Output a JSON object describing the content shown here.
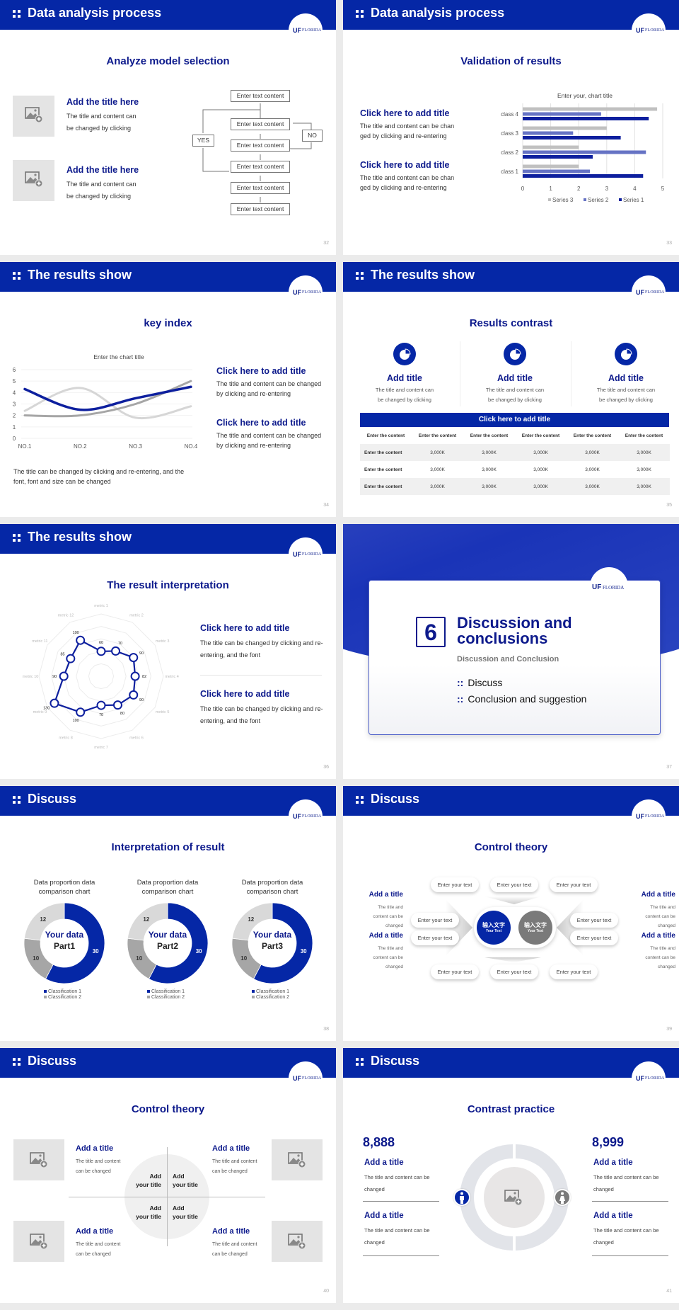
{
  "colors": {
    "brand": "#0527a6",
    "title": "#0d1a8c",
    "series_dark": "#0d1f9e",
    "series_mid": "#6673c4",
    "light_gray": "#d3d3d3",
    "mid_gray": "#a6a6a6"
  },
  "logo": {
    "mark": "UF",
    "name": "FLORIDA"
  },
  "s32": {
    "page": "32",
    "header": "Data analysis process",
    "title": "Analyze model selection",
    "items": [
      {
        "title": "Add the title here",
        "body": "The title and content can be changed by clicking"
      },
      {
        "title": "Add the title here",
        "body": "The title and content can be changed by clicking"
      }
    ],
    "flow": {
      "steps": [
        "Enter text content",
        "Enter text content",
        "Enter text content",
        "Enter text content",
        "Enter text content",
        "Enter text content"
      ],
      "yes": "YES",
      "no": "NO"
    }
  },
  "s33": {
    "page": "33",
    "header": "Data analysis process",
    "title": "Validation of results",
    "items": [
      {
        "title": "Click here to add title",
        "body": "The title and content can be changed by clicking and re-entering"
      },
      {
        "title": "Click here to add title",
        "body": "The title and content can be changed by clicking and re-entering"
      }
    ]
  },
  "s34": {
    "page": "34",
    "header": "The results show",
    "title": "key index",
    "items": [
      {
        "title": "Click here to add title",
        "body": "The title and content can be changed by clicking and re-entering"
      },
      {
        "title": "Click here to add title",
        "body": "The title and content can be changed by clicking and re-entering"
      }
    ],
    "note": "The title can be changed by clicking and re-entering, and the font, font and size can be changed"
  },
  "s35": {
    "page": "35",
    "header": "The results show",
    "title": "Results contrast",
    "cards": [
      {
        "title": "Add title",
        "body": "The title and content can be changed by clicking",
        "icon": "pie-chart-icon"
      },
      {
        "title": "Add title",
        "body": "The title and content can be changed by clicking",
        "icon": "pie-chart-icon"
      },
      {
        "title": "Add title",
        "body": "The title and content can be changed by clicking",
        "icon": "pie-chart-icon"
      }
    ],
    "table": {
      "title": "Click here to add title",
      "header": [
        "Enter the content",
        "Enter the content",
        "Enter the content",
        "Enter the content",
        "Enter the content",
        "Enter the content"
      ],
      "rows": [
        [
          "Enter the content",
          "3,000K",
          "3,000K",
          "3,000K",
          "3,000K",
          "3,000K"
        ],
        [
          "Enter the content",
          "3,000K",
          "3,000K",
          "3,000K",
          "3,000K",
          "3,000K"
        ],
        [
          "Enter the content",
          "3,000K",
          "3,000K",
          "3,000K",
          "3,000K",
          "3,000K"
        ]
      ]
    }
  },
  "s36": {
    "page": "36",
    "header": "The results show",
    "title": "The result interpretation",
    "items": [
      {
        "title": "Click here to add  title",
        "body": "The title can be changed by clicking and re-entering, and the font"
      },
      {
        "title": "Click here to add  title",
        "body": "The title can be changed by clicking and re-entering, and the font"
      }
    ]
  },
  "s37": {
    "page": "37",
    "number": "6",
    "title_line1": "Discussion and",
    "title_line2": "conclusions",
    "subtitle": "Discussion and Conclusion",
    "bullets": [
      "Discuss",
      "Conclusion and suggestion"
    ]
  },
  "s38": {
    "page": "38",
    "header": "Discuss",
    "title": "Interpretation of result",
    "donuts": [
      {
        "line1": "Your data",
        "line2": "Part1"
      },
      {
        "line1": "Your data",
        "line2": "Part2"
      },
      {
        "line1": "Your data",
        "line2": "Part3"
      }
    ]
  },
  "s39": {
    "page": "39",
    "header": "Discuss",
    "title": "Control theory",
    "side_items": [
      {
        "title": "Add a title",
        "body": "The title and content can be changed"
      },
      {
        "title": "Add a title",
        "body": "The title and content can be changed"
      },
      {
        "title": "Add a title",
        "body": "The title and content can be changed"
      },
      {
        "title": "Add a title",
        "body": "The title and content can be changed"
      }
    ],
    "pills": [
      "Enter your text",
      "Enter your text",
      "Enter your text",
      "Enter your text",
      "Enter your text",
      "Enter your text",
      "Enter your text",
      "Enter your text",
      "Enter your text",
      "Enter your text"
    ],
    "center": [
      {
        "cn": "输入文字",
        "en": "Your Text"
      },
      {
        "cn": "输入文字",
        "en": "Your Text"
      }
    ]
  },
  "s40": {
    "page": "40",
    "header": "Discuss",
    "title": "Control theory",
    "items": [
      {
        "title": "Add a title",
        "body": "The title and content can be changed"
      },
      {
        "title": "Add a title",
        "body": "The title and content can be changed"
      },
      {
        "title": "Add a title",
        "body": "The title and content can be changed"
      },
      {
        "title": "Add a title",
        "body": "The title and content can be changed"
      }
    ],
    "quadrants": [
      {
        "l1": "Add",
        "l2": "your title"
      },
      {
        "l1": "Add",
        "l2": "your title"
      },
      {
        "l1": "Add",
        "l2": "your title"
      },
      {
        "l1": "Add",
        "l2": "your title"
      }
    ]
  },
  "s41": {
    "page": "41",
    "header": "Discuss",
    "title": "Contrast practice",
    "left": {
      "number": "8,888",
      "items": [
        {
          "title": "Add a title",
          "body": "The title and content can be changed"
        },
        {
          "title": "Add a title",
          "body": "The title and content can be changed"
        }
      ],
      "icon": "male-icon"
    },
    "right": {
      "number": "8,999",
      "items": [
        {
          "title": "Add a title",
          "body": "The title and content can be changed"
        },
        {
          "title": "Add a title",
          "body": "The title and content can be changed"
        }
      ],
      "icon": "female-icon"
    }
  },
  "chart_data": [
    {
      "type": "bar",
      "orientation": "horizontal",
      "title": "Enter your, chart title",
      "categories": [
        "class 1",
        "class 2",
        "class 3",
        "class 4"
      ],
      "series": [
        {
          "name": "Series 1",
          "values": [
            4.3,
            2.5,
            3.5,
            4.5
          ],
          "color": "#0d1f9e"
        },
        {
          "name": "Series 2",
          "values": [
            2.4,
            4.4,
            1.8,
            2.8
          ],
          "color": "#6673c4"
        },
        {
          "name": "Series 3",
          "values": [
            2,
            2,
            3,
            4.8
          ],
          "color": "#c0c0c0"
        }
      ],
      "xlim": [
        0,
        5
      ],
      "xticks": [
        0,
        1,
        2,
        3,
        4,
        5
      ],
      "grid": true,
      "legend": "bottom"
    },
    {
      "type": "line",
      "title": "Enter the chart title",
      "categories": [
        "NO.1",
        "NO.2",
        "NO.3",
        "NO.4"
      ],
      "series": [
        {
          "values": [
            4.3,
            2.5,
            3.5,
            4.5
          ],
          "color": "#0d1f9e"
        },
        {
          "values": [
            2.4,
            4.4,
            1.8,
            2.8
          ],
          "color": "#d6d6d6"
        },
        {
          "values": [
            2,
            2,
            3,
            5
          ],
          "color": "#a6a6a6"
        }
      ],
      "ylim": [
        0,
        6
      ],
      "yticks": [
        0,
        1,
        2,
        3,
        4,
        5,
        6
      ],
      "smooth": true,
      "grid": true
    },
    {
      "type": "radar",
      "categories": [
        "metric 1",
        "metric 2",
        "metric 3",
        "metric 4",
        "metric 5",
        "metric 6",
        "metric 7",
        "metric 8",
        "metric 9",
        "metric 10",
        "metric 11",
        "metric 12"
      ],
      "values": [
        60,
        70,
        90,
        82,
        90,
        80,
        70,
        100,
        130,
        90,
        85,
        100
      ],
      "rmax": 150,
      "color": "#0d1f9e"
    },
    {
      "type": "pie",
      "hole": true,
      "title": "Data proportion data comparison chart",
      "slices": [
        {
          "name": "Classification 1",
          "value": 30,
          "color": "#0527a6"
        },
        {
          "name": "Classification 2",
          "value": 10,
          "color": "#a6a6a6"
        },
        {
          "value": 12,
          "color": "#d9d9d9"
        }
      ],
      "legend": "bottom"
    },
    {
      "type": "pie",
      "hole": true,
      "title": "Data proportion data comparison chart",
      "slices": [
        {
          "name": "Classification 1",
          "value": 30,
          "color": "#0527a6"
        },
        {
          "name": "Classification 2",
          "value": 10,
          "color": "#a6a6a6"
        },
        {
          "value": 12,
          "color": "#d9d9d9"
        }
      ],
      "legend": "bottom"
    },
    {
      "type": "pie",
      "hole": true,
      "title": "Data proportion data comparison chart",
      "slices": [
        {
          "name": "Classification 1",
          "value": 30,
          "color": "#0527a6"
        },
        {
          "name": "Classification 2",
          "value": 10,
          "color": "#a6a6a6"
        },
        {
          "value": 12,
          "color": "#d9d9d9"
        }
      ],
      "legend": "bottom"
    }
  ]
}
